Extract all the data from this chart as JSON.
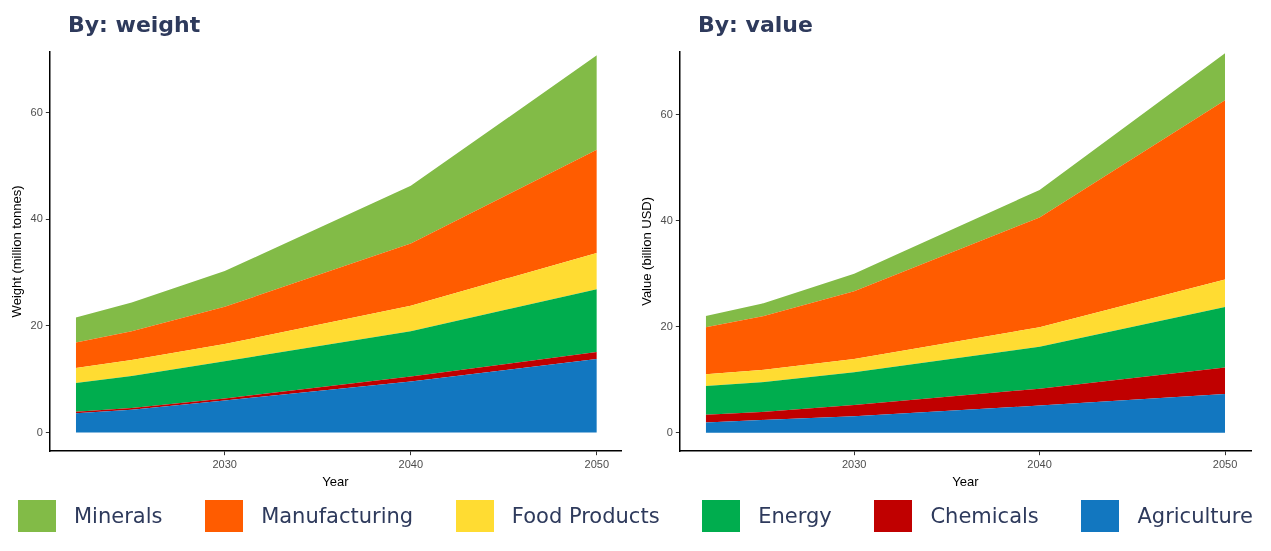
{
  "chart_data": [
    {
      "type": "area",
      "title": "By: weight",
      "xlabel": "Year",
      "ylabel": "Weight (million tonnes)",
      "stacked": true,
      "legend": "bottom",
      "grid": false,
      "x": [
        2022,
        2025,
        2030,
        2040,
        2050
      ],
      "xlim": [
        2020.6,
        2051.3
      ],
      "xticks": [
        2030,
        2040,
        2050
      ],
      "ylim": [
        -3.5,
        71.5
      ],
      "yticks": [
        0,
        20,
        40,
        60
      ],
      "series": [
        {
          "name": "Agriculture",
          "color": "#1277c0",
          "values": [
            3.6,
            4.3,
            6.0,
            9.6,
            13.8
          ]
        },
        {
          "name": "Chemicals",
          "color": "#c00000",
          "values": [
            0.3,
            0.3,
            0.4,
            0.9,
            1.3
          ]
        },
        {
          "name": "Energy",
          "color": "#00ad4e",
          "values": [
            5.4,
            6.0,
            7.0,
            8.5,
            11.8
          ]
        },
        {
          "name": "Food Products",
          "color": "#ffdc32",
          "values": [
            2.8,
            3.0,
            3.2,
            4.8,
            6.8
          ]
        },
        {
          "name": "Manufacturing",
          "color": "#ff5c00",
          "values": [
            4.8,
            5.4,
            7.0,
            11.7,
            19.4
          ]
        },
        {
          "name": "Minerals",
          "color": "#82bb47",
          "values": [
            4.7,
            5.4,
            6.7,
            10.8,
            17.7
          ]
        }
      ]
    },
    {
      "type": "area",
      "title": "By: value",
      "xlabel": "Year",
      "ylabel": "Value (billion USD)",
      "stacked": true,
      "legend": "bottom",
      "grid": false,
      "x": [
        2022,
        2025,
        2030,
        2040,
        2050
      ],
      "xlim": [
        2020.6,
        2051.4
      ],
      "xticks": [
        2030,
        2040,
        2050
      ],
      "ylim": [
        -3.5,
        71.9
      ],
      "yticks": [
        0,
        20,
        40,
        60
      ],
      "series": [
        {
          "name": "Agriculture",
          "color": "#1277c0",
          "values": [
            1.9,
            2.4,
            3.1,
            5.1,
            7.3
          ]
        },
        {
          "name": "Chemicals",
          "color": "#c00000",
          "values": [
            1.5,
            1.5,
            2.1,
            3.2,
            5.0
          ]
        },
        {
          "name": "Energy",
          "color": "#00ad4e",
          "values": [
            5.4,
            5.6,
            6.2,
            7.9,
            11.4
          ]
        },
        {
          "name": "Food Products",
          "color": "#ffdc32",
          "values": [
            2.2,
            2.3,
            2.5,
            3.7,
            5.2
          ]
        },
        {
          "name": "Manufacturing",
          "color": "#ff5c00",
          "values": [
            8.9,
            10.1,
            12.8,
            20.7,
            33.8
          ]
        },
        {
          "name": "Minerals",
          "color": "#82bb47",
          "values": [
            2.1,
            2.4,
            3.3,
            5.2,
            8.9
          ]
        }
      ]
    }
  ]
}
